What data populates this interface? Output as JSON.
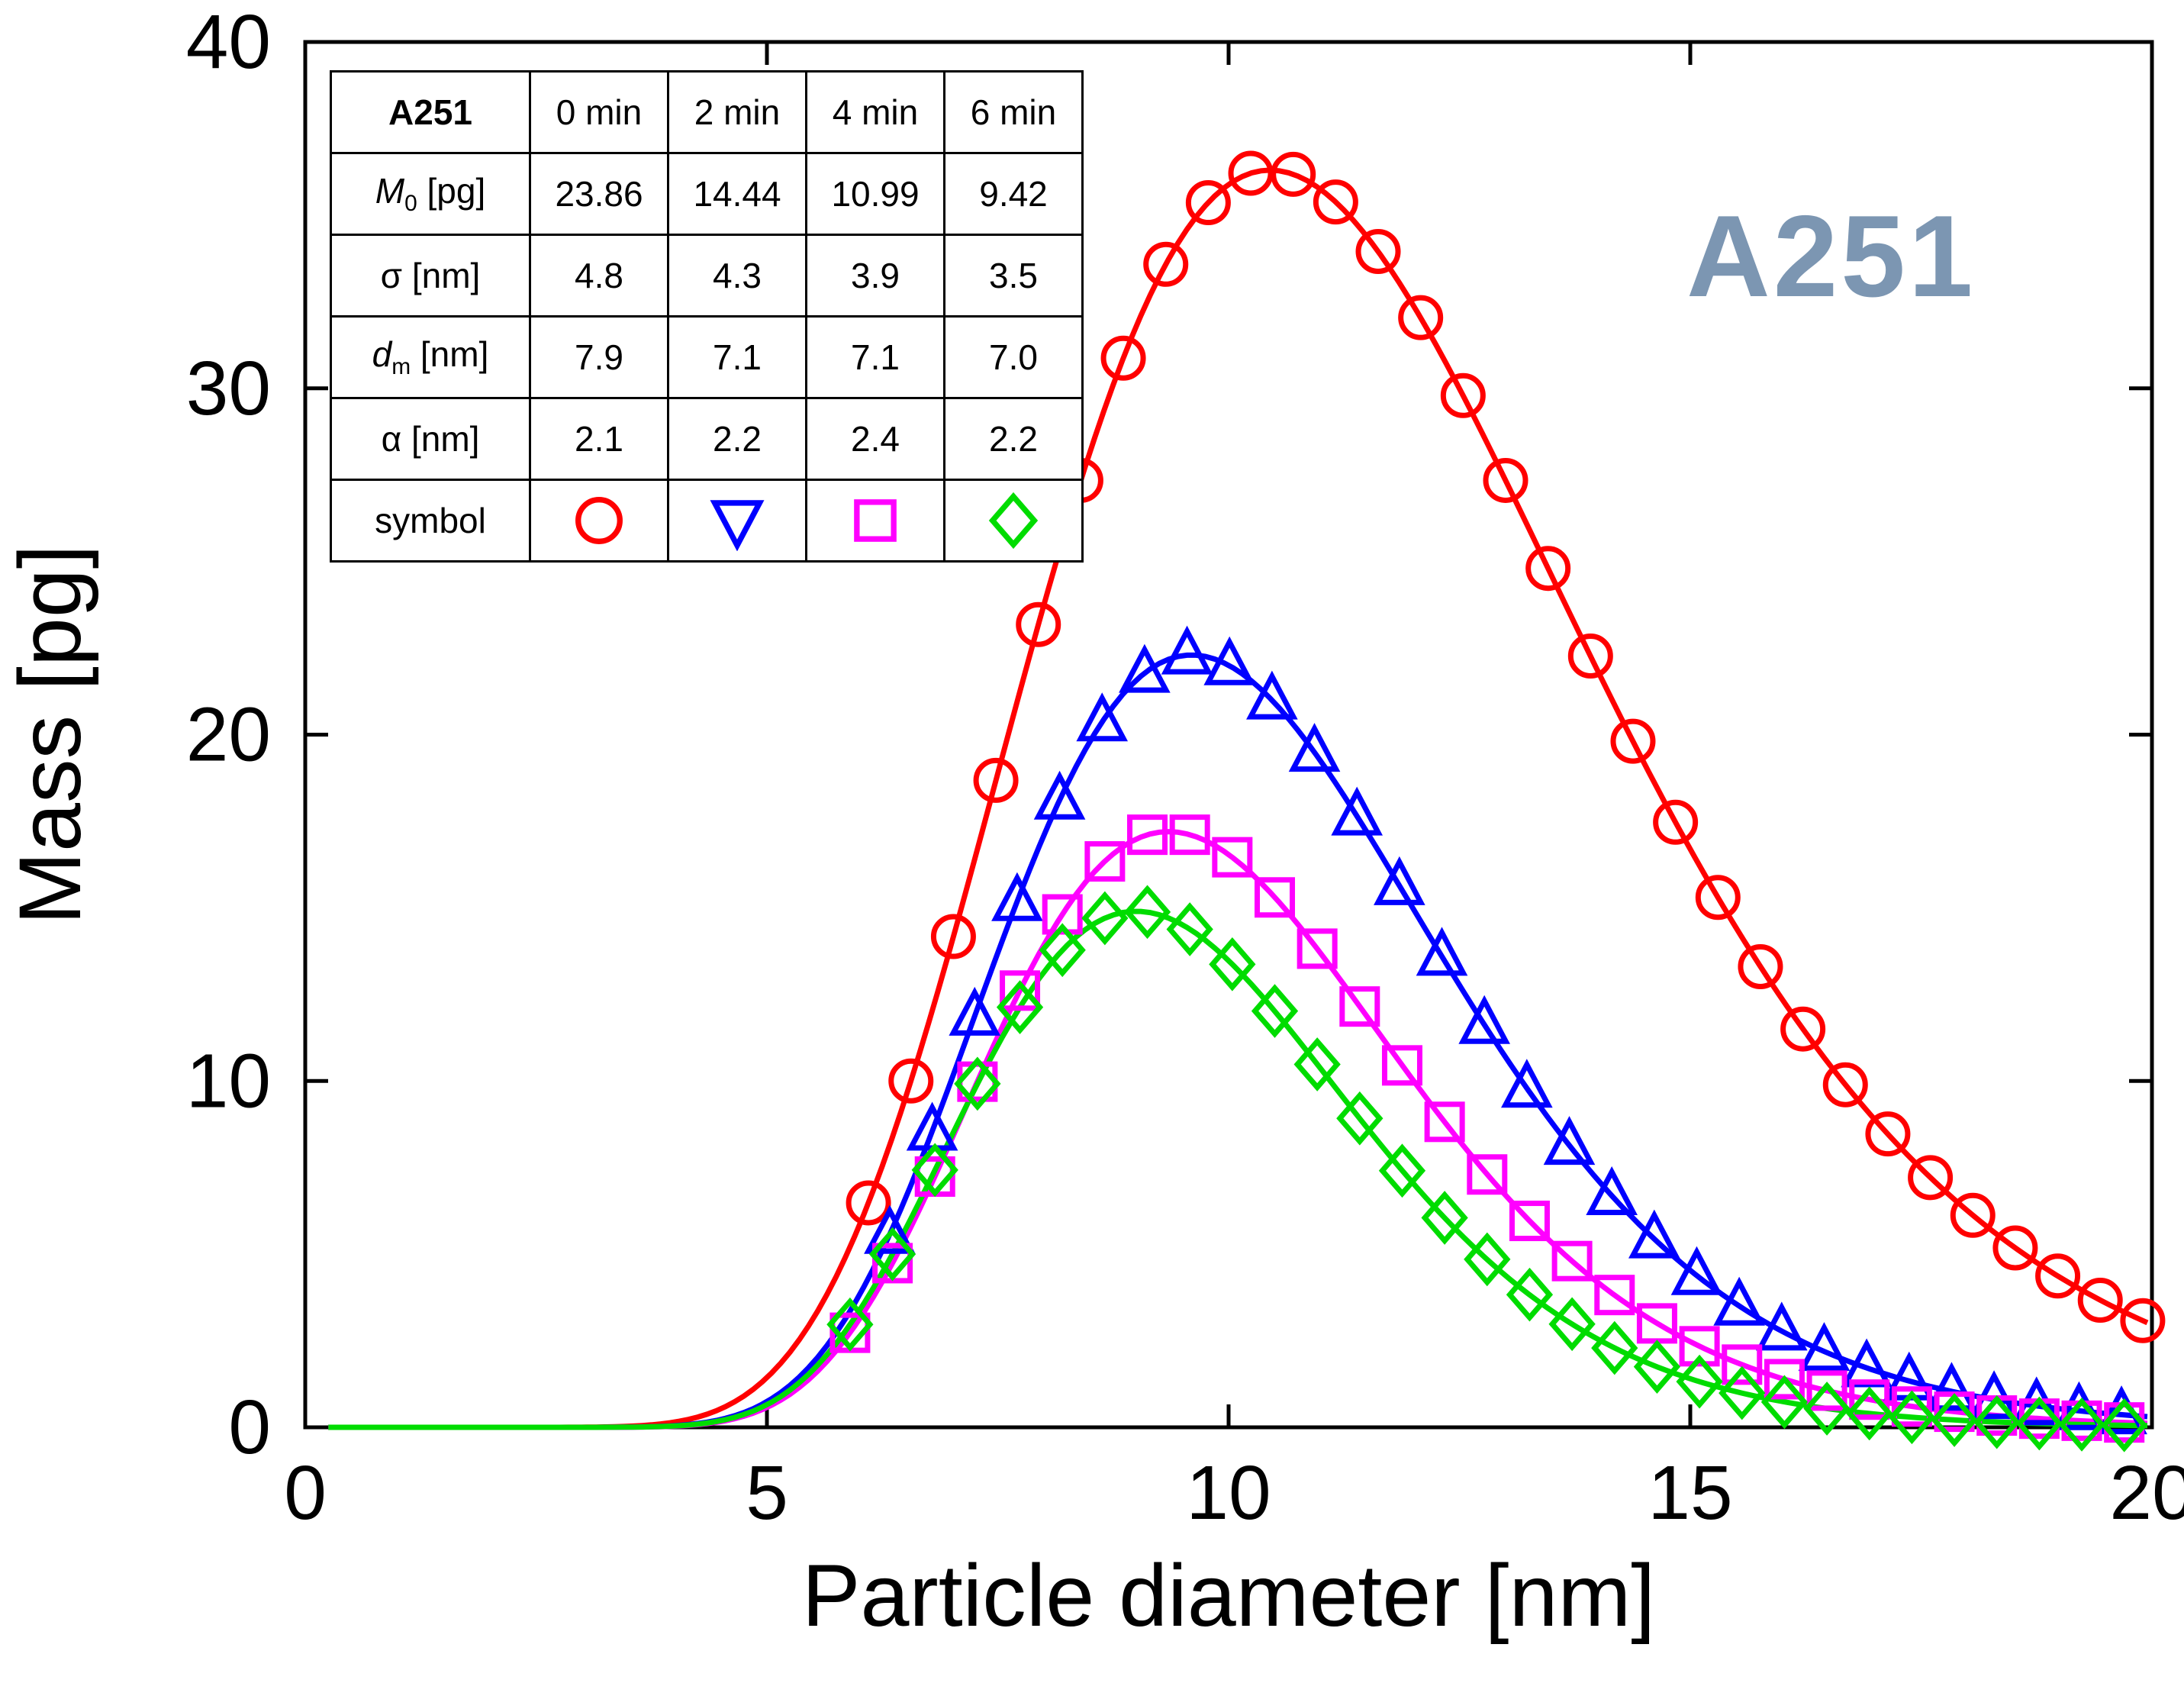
{
  "annotation": {
    "text": "A251",
    "color": "#7C96B2"
  },
  "chart_data": {
    "type": "line+scatter",
    "title": "",
    "xlabel": "Particle diameter [nm]",
    "ylabel": "Mass [pg]",
    "xlim": [
      0,
      20
    ],
    "ylim": [
      0,
      40
    ],
    "xticks": [
      0,
      5,
      10,
      15,
      20
    ],
    "yticks": [
      0,
      10,
      20,
      30,
      40
    ],
    "grid": false,
    "legend_position": "inset-table-top-left",
    "series": [
      {
        "name": "0 min",
        "color": "#FF0000",
        "marker": "circle",
        "legend_marker": "circle",
        "curve": {
          "shape": "lognormal",
          "amplitude": 36.3,
          "mode": 10.45,
          "sigma": 0.29
        },
        "points": [
          [
            6.1,
            6.48
          ],
          [
            6.56,
            10.0
          ],
          [
            7.02,
            14.17
          ],
          [
            7.48,
            18.68
          ],
          [
            7.94,
            23.18
          ],
          [
            8.4,
            27.34
          ],
          [
            8.86,
            30.87
          ],
          [
            9.32,
            33.58
          ],
          [
            9.78,
            35.36
          ],
          [
            10.24,
            36.21
          ],
          [
            10.7,
            36.18
          ],
          [
            11.16,
            35.38
          ],
          [
            11.62,
            33.95
          ],
          [
            12.08,
            32.04
          ],
          [
            12.54,
            29.79
          ],
          [
            13.0,
            27.34
          ],
          [
            13.46,
            24.8
          ],
          [
            13.92,
            22.27
          ],
          [
            14.38,
            19.81
          ],
          [
            14.84,
            17.47
          ],
          [
            15.3,
            15.3
          ],
          [
            15.76,
            13.3
          ],
          [
            16.22,
            11.5
          ],
          [
            16.68,
            9.89
          ],
          [
            17.14,
            8.47
          ],
          [
            17.6,
            7.21
          ],
          [
            18.06,
            6.12
          ],
          [
            18.52,
            5.18
          ],
          [
            18.98,
            4.37
          ],
          [
            19.44,
            3.67
          ],
          [
            19.9,
            3.08
          ]
        ]
      },
      {
        "name": "2 min",
        "color": "#0000FF",
        "marker": "triangle-up",
        "legend_marker": "triangle-down",
        "curve": {
          "shape": "lognormal",
          "amplitude": 22.3,
          "mode": 9.6,
          "sigma": 0.25
        },
        "points": [
          [
            6.33,
            5.57
          ],
          [
            6.79,
            8.55
          ],
          [
            7.25,
            11.87
          ],
          [
            7.71,
            15.18
          ],
          [
            8.17,
            18.11
          ],
          [
            8.63,
            20.37
          ],
          [
            9.09,
            21.77
          ],
          [
            9.55,
            22.3
          ],
          [
            10.01,
            21.99
          ],
          [
            10.47,
            21.0
          ],
          [
            10.93,
            19.49
          ],
          [
            11.39,
            17.65
          ],
          [
            11.85,
            15.64
          ],
          [
            12.31,
            13.6
          ],
          [
            12.77,
            11.63
          ],
          [
            13.23,
            9.79
          ],
          [
            13.69,
            8.14
          ],
          [
            14.15,
            6.69
          ],
          [
            14.61,
            5.44
          ],
          [
            15.07,
            4.38
          ],
          [
            15.53,
            3.5
          ],
          [
            15.99,
            2.78
          ],
          [
            16.45,
            2.19
          ],
          [
            16.91,
            1.72
          ],
          [
            17.37,
            1.34
          ],
          [
            17.83,
            1.04
          ],
          [
            18.29,
            0.8
          ],
          [
            18.75,
            0.62
          ],
          [
            19.21,
            0.48
          ],
          [
            19.67,
            0.36
          ]
        ]
      },
      {
        "name": "4 min",
        "color": "#FF00FF",
        "marker": "square",
        "legend_marker": "square",
        "curve": {
          "shape": "lognormal",
          "amplitude": 17.2,
          "mode": 9.35,
          "sigma": 0.24
        },
        "points": [
          [
            5.9,
            2.73
          ],
          [
            6.36,
            4.74
          ],
          [
            6.82,
            7.24
          ],
          [
            7.28,
            9.98
          ],
          [
            7.74,
            12.61
          ],
          [
            8.2,
            14.81
          ],
          [
            8.66,
            16.34
          ],
          [
            9.12,
            17.11
          ],
          [
            9.58,
            17.11
          ],
          [
            10.04,
            16.46
          ],
          [
            10.5,
            15.3
          ],
          [
            10.96,
            13.82
          ],
          [
            11.42,
            12.15
          ],
          [
            11.88,
            10.45
          ],
          [
            12.34,
            8.82
          ],
          [
            12.8,
            7.3
          ],
          [
            13.26,
            5.96
          ],
          [
            13.72,
            4.8
          ],
          [
            14.18,
            3.82
          ],
          [
            14.64,
            3.0
          ],
          [
            15.1,
            2.34
          ],
          [
            15.56,
            1.81
          ],
          [
            16.02,
            1.39
          ],
          [
            16.48,
            1.06
          ],
          [
            16.94,
            0.8
          ],
          [
            17.4,
            0.6
          ],
          [
            17.86,
            0.45
          ],
          [
            18.32,
            0.34
          ],
          [
            18.78,
            0.25
          ],
          [
            19.24,
            0.19
          ],
          [
            19.7,
            0.14
          ]
        ]
      },
      {
        "name": "6 min",
        "color": "#00DC00",
        "marker": "diamond",
        "legend_marker": "diamond",
        "curve": {
          "shape": "lognormal",
          "amplitude": 14.9,
          "mode": 9.0,
          "sigma": 0.235
        },
        "points": [
          [
            5.9,
            2.97
          ],
          [
            6.36,
            5.0
          ],
          [
            6.82,
            7.43
          ],
          [
            7.28,
            9.92
          ],
          [
            7.74,
            12.13
          ],
          [
            8.2,
            13.78
          ],
          [
            8.66,
            14.7
          ],
          [
            9.12,
            14.88
          ],
          [
            9.58,
            14.38
          ],
          [
            10.04,
            13.37
          ],
          [
            10.5,
            12.02
          ],
          [
            10.96,
            10.48
          ],
          [
            11.42,
            8.92
          ],
          [
            11.88,
            7.41
          ],
          [
            12.34,
            6.05
          ],
          [
            12.8,
            4.85
          ],
          [
            13.26,
            3.83
          ],
          [
            13.72,
            2.98
          ],
          [
            14.18,
            2.29
          ],
          [
            14.64,
            1.75
          ],
          [
            15.1,
            1.32
          ],
          [
            15.56,
            0.99
          ],
          [
            16.02,
            0.73
          ],
          [
            16.48,
            0.54
          ],
          [
            16.94,
            0.4
          ],
          [
            17.4,
            0.29
          ],
          [
            17.86,
            0.21
          ],
          [
            18.32,
            0.15
          ],
          [
            18.78,
            0.11
          ],
          [
            19.24,
            0.08
          ],
          [
            19.7,
            0.06
          ]
        ]
      }
    ]
  },
  "table": {
    "header": {
      "title": "A251",
      "cols": [
        "0 min",
        "2 min",
        "4 min",
        "6 min"
      ]
    },
    "rows": [
      {
        "label_base": "M",
        "label_sub": "0",
        "label_unit": " [pg]",
        "italic": true,
        "values": [
          "23.86",
          "14.44",
          "10.99",
          "9.42"
        ]
      },
      {
        "label_base": "σ",
        "label_sub": "",
        "label_unit": " [nm]",
        "italic": false,
        "values": [
          "4.8",
          "4.3",
          "3.9",
          "3.5"
        ]
      },
      {
        "label_base": "d",
        "label_sub": "m",
        "label_unit": " [nm]",
        "italic": true,
        "values": [
          "7.9",
          "7.1",
          "7.1",
          "7.0"
        ]
      },
      {
        "label_base": "α",
        "label_sub": "",
        "label_unit": " [nm]",
        "italic": false,
        "values": [
          "2.1",
          "2.2",
          "2.4",
          "2.2"
        ]
      },
      {
        "label_base": "symbol",
        "label_sub": "",
        "label_unit": "",
        "italic": false,
        "symbols": [
          {
            "marker": "circle",
            "color": "#FF0000"
          },
          {
            "marker": "triangle-down",
            "color": "#0000FF"
          },
          {
            "marker": "square",
            "color": "#FF00FF"
          },
          {
            "marker": "diamond",
            "color": "#00DC00"
          }
        ]
      }
    ]
  }
}
